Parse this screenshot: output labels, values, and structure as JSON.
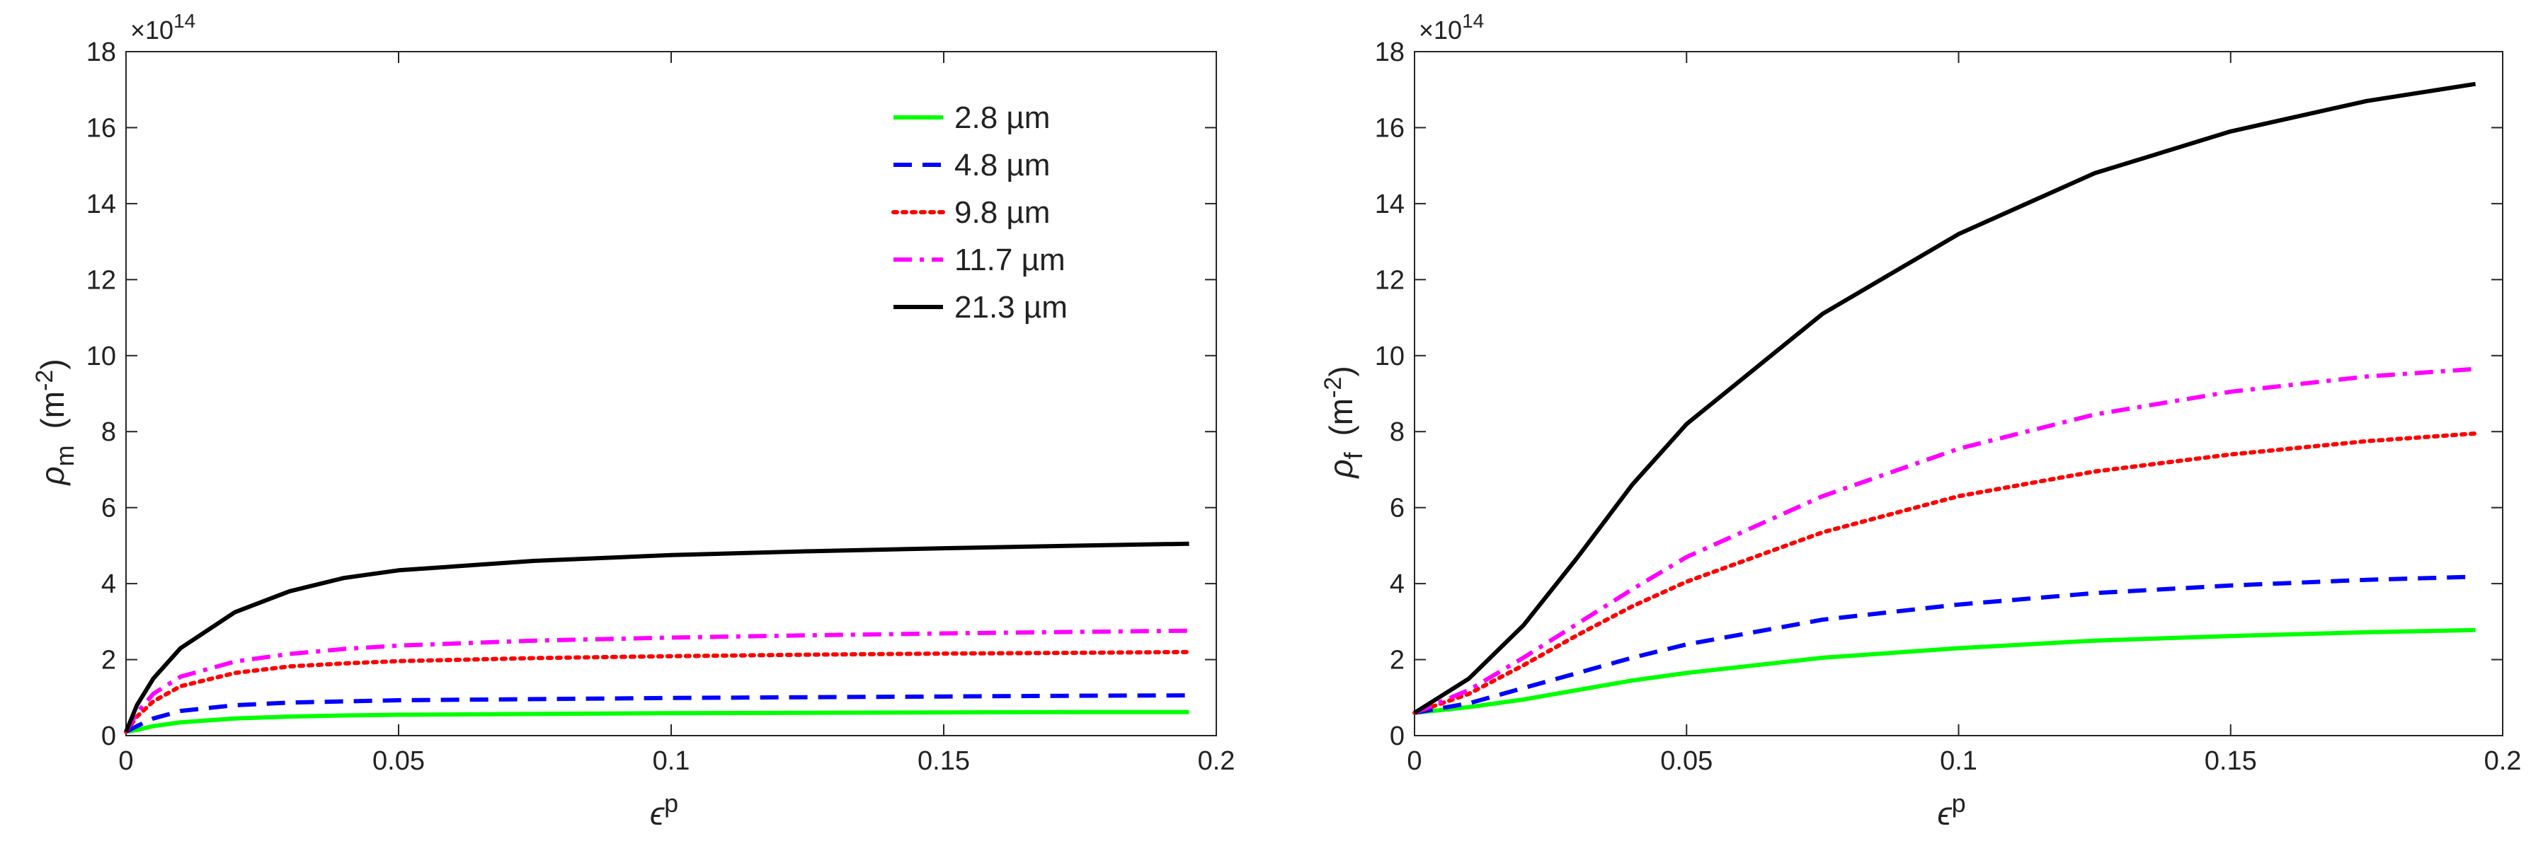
{
  "chart_data": [
    {
      "type": "line",
      "ylabel_symbol": "ρ",
      "ylabel_sub": "m",
      "ylabel_unit_prefix": "(m",
      "ylabel_unit_exp": "-2",
      "ylabel_unit_suffix": ")",
      "xlabel_symbol": "ϵ",
      "xlabel_sup": "p",
      "exponent_base": "×10",
      "exponent_power": "14",
      "xlim": [
        0,
        0.2
      ],
      "ylim": [
        0,
        18
      ],
      "xticks": [
        0,
        0.05,
        0.1,
        0.15,
        0.2
      ],
      "xtick_labels": [
        "0",
        "0.05",
        "0.1",
        "0.15",
        "0.2"
      ],
      "yticks": [
        0,
        2,
        4,
        6,
        8,
        10,
        12,
        14,
        16,
        18
      ],
      "ytick_labels": [
        "0",
        "2",
        "4",
        "6",
        "8",
        "10",
        "12",
        "14",
        "16",
        "18"
      ],
      "legend_position": "top-right",
      "series": [
        {
          "name": "2.8 µm",
          "color": "#00ff00",
          "style": "solid",
          "x": [
            0,
            0.002,
            0.005,
            0.01,
            0.02,
            0.03,
            0.04,
            0.05,
            0.075,
            0.1,
            0.125,
            0.15,
            0.175,
            0.195
          ],
          "values": [
            0.1,
            0.15,
            0.25,
            0.35,
            0.45,
            0.5,
            0.53,
            0.55,
            0.57,
            0.59,
            0.6,
            0.61,
            0.62,
            0.62
          ]
        },
        {
          "name": "4.8 µm",
          "color": "#0000ff",
          "style": "dashed",
          "x": [
            0,
            0.002,
            0.005,
            0.01,
            0.02,
            0.03,
            0.04,
            0.05,
            0.075,
            0.1,
            0.125,
            0.15,
            0.175,
            0.195
          ],
          "values": [
            0.1,
            0.25,
            0.45,
            0.65,
            0.8,
            0.87,
            0.9,
            0.93,
            0.96,
            0.99,
            1.01,
            1.03,
            1.05,
            1.06
          ]
        },
        {
          "name": "9.8 µm",
          "color": "#ff0000",
          "style": "dotted",
          "x": [
            0,
            0.002,
            0.005,
            0.01,
            0.02,
            0.03,
            0.04,
            0.05,
            0.075,
            0.1,
            0.125,
            0.15,
            0.175,
            0.195
          ],
          "values": [
            0.1,
            0.5,
            0.9,
            1.3,
            1.65,
            1.82,
            1.9,
            1.96,
            2.04,
            2.09,
            2.13,
            2.16,
            2.18,
            2.2
          ]
        },
        {
          "name": "11.7 µm",
          "color": "#ff00ff",
          "style": "dashdot",
          "x": [
            0,
            0.002,
            0.005,
            0.01,
            0.02,
            0.03,
            0.04,
            0.05,
            0.075,
            0.1,
            0.125,
            0.15,
            0.175,
            0.195
          ],
          "values": [
            0.1,
            0.6,
            1.1,
            1.55,
            1.95,
            2.15,
            2.28,
            2.37,
            2.5,
            2.58,
            2.64,
            2.69,
            2.73,
            2.76
          ]
        },
        {
          "name": "21.3 µm",
          "color": "#000000",
          "style": "solid",
          "x": [
            0,
            0.002,
            0.005,
            0.01,
            0.02,
            0.03,
            0.04,
            0.05,
            0.075,
            0.1,
            0.125,
            0.15,
            0.175,
            0.195
          ],
          "values": [
            0.1,
            0.8,
            1.5,
            2.3,
            3.25,
            3.8,
            4.15,
            4.35,
            4.6,
            4.75,
            4.85,
            4.93,
            5.0,
            5.05
          ]
        }
      ]
    },
    {
      "type": "line",
      "ylabel_symbol": "ρ",
      "ylabel_sub": "f",
      "ylabel_unit_prefix": "(m",
      "ylabel_unit_exp": "-2",
      "ylabel_unit_suffix": ")",
      "xlabel_symbol": "ϵ",
      "xlabel_sup": "p",
      "exponent_base": "×10",
      "exponent_power": "14",
      "xlim": [
        0,
        0.2
      ],
      "ylim": [
        0,
        18
      ],
      "xticks": [
        0,
        0.05,
        0.1,
        0.15,
        0.2
      ],
      "xtick_labels": [
        "0",
        "0.05",
        "0.1",
        "0.15",
        "0.2"
      ],
      "yticks": [
        0,
        2,
        4,
        6,
        8,
        10,
        12,
        14,
        16,
        18
      ],
      "ytick_labels": [
        "0",
        "2",
        "4",
        "6",
        "8",
        "10",
        "12",
        "14",
        "16",
        "18"
      ],
      "series": [
        {
          "name": "2.8 µm",
          "color": "#00ff00",
          "style": "solid",
          "x": [
            0,
            0.01,
            0.02,
            0.03,
            0.04,
            0.05,
            0.075,
            0.1,
            0.125,
            0.15,
            0.175,
            0.195
          ],
          "values": [
            0.6,
            0.75,
            0.95,
            1.2,
            1.45,
            1.65,
            2.05,
            2.3,
            2.5,
            2.62,
            2.72,
            2.78
          ]
        },
        {
          "name": "4.8 µm",
          "color": "#0000ff",
          "style": "dashed",
          "x": [
            0,
            0.01,
            0.02,
            0.03,
            0.04,
            0.05,
            0.075,
            0.1,
            0.125,
            0.15,
            0.175,
            0.195
          ],
          "values": [
            0.6,
            0.85,
            1.25,
            1.65,
            2.05,
            2.4,
            3.05,
            3.45,
            3.75,
            3.95,
            4.1,
            4.18
          ]
        },
        {
          "name": "9.8 µm",
          "color": "#ff0000",
          "style": "dotted",
          "x": [
            0,
            0.01,
            0.02,
            0.03,
            0.04,
            0.05,
            0.075,
            0.1,
            0.125,
            0.15,
            0.175,
            0.195
          ],
          "values": [
            0.6,
            1.1,
            1.85,
            2.65,
            3.4,
            4.05,
            5.35,
            6.3,
            6.95,
            7.4,
            7.75,
            7.95
          ]
        },
        {
          "name": "11.7 µm",
          "color": "#ff00ff",
          "style": "dashdot",
          "x": [
            0,
            0.01,
            0.02,
            0.03,
            0.04,
            0.05,
            0.075,
            0.1,
            0.125,
            0.15,
            0.175,
            0.195
          ],
          "values": [
            0.6,
            1.2,
            2.05,
            2.95,
            3.85,
            4.7,
            6.3,
            7.55,
            8.45,
            9.05,
            9.45,
            9.65
          ]
        },
        {
          "name": "21.3 µm",
          "color": "#000000",
          "style": "solid",
          "x": [
            0,
            0.01,
            0.02,
            0.03,
            0.04,
            0.05,
            0.075,
            0.1,
            0.125,
            0.15,
            0.175,
            0.195
          ],
          "values": [
            0.6,
            1.5,
            2.9,
            4.7,
            6.6,
            8.2,
            11.1,
            13.2,
            14.8,
            15.9,
            16.7,
            17.15
          ]
        }
      ]
    }
  ]
}
